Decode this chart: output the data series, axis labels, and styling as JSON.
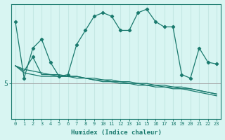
{
  "xlabel": "Humidex (Indice chaleur)",
  "background_color": "#d8f5f2",
  "line_color": "#1a7a6e",
  "grid_color": "#c5e8e4",
  "ytick_label": "5",
  "ytick_val": 5,
  "y_min": 3.0,
  "y_max": 9.5,
  "x_min": -0.5,
  "x_max": 23.5,
  "xticks": [
    0,
    1,
    2,
    3,
    4,
    5,
    6,
    7,
    8,
    9,
    10,
    11,
    12,
    13,
    14,
    15,
    16,
    17,
    18,
    19,
    20,
    21,
    22,
    23
  ],
  "line1_x": [
    0,
    1,
    2,
    3,
    4,
    5,
    6,
    7,
    8,
    9,
    10,
    11,
    12,
    13,
    14,
    15,
    16,
    17,
    18,
    19,
    20,
    21,
    22,
    23
  ],
  "line1_y": [
    8.5,
    5.3,
    7.0,
    7.5,
    6.2,
    5.4,
    5.5,
    7.2,
    8.0,
    8.8,
    9.0,
    8.8,
    8.0,
    8.0,
    9.0,
    9.2,
    8.5,
    8.2,
    8.2,
    5.5,
    5.3,
    7.0,
    6.2,
    6.1
  ],
  "line2_x": [
    0,
    1,
    2,
    3,
    4,
    5,
    6,
    7,
    8,
    9,
    10,
    11,
    12,
    13,
    14,
    15,
    16,
    17,
    18,
    19,
    20,
    21,
    22,
    23
  ],
  "line2_y": [
    6.0,
    5.8,
    5.7,
    5.6,
    5.5,
    5.5,
    5.4,
    5.4,
    5.3,
    5.3,
    5.2,
    5.2,
    5.1,
    5.1,
    5.0,
    5.0,
    4.9,
    4.9,
    4.8,
    4.8,
    4.7,
    4.6,
    4.5,
    4.4
  ],
  "line3_x": [
    0,
    1,
    2,
    3,
    4,
    5,
    6,
    7,
    8,
    9,
    10,
    11,
    12,
    13,
    14,
    15,
    16,
    17,
    18,
    19,
    20,
    21,
    22,
    23
  ],
  "line3_y": [
    6.0,
    5.7,
    6.5,
    5.5,
    5.5,
    5.4,
    5.4,
    5.4,
    5.3,
    5.2,
    5.2,
    5.1,
    5.1,
    5.0,
    5.0,
    4.9,
    4.9,
    4.8,
    4.8,
    4.7,
    4.7,
    4.6,
    4.5,
    4.4
  ],
  "line4_x": [
    0,
    1,
    2,
    3,
    4,
    5,
    6,
    7,
    8,
    9,
    10,
    11,
    12,
    13,
    14,
    15,
    16,
    17,
    18,
    19,
    20,
    21,
    22,
    23
  ],
  "line4_y": [
    6.0,
    5.6,
    5.5,
    5.4,
    5.4,
    5.4,
    5.4,
    5.3,
    5.3,
    5.2,
    5.1,
    5.1,
    5.0,
    5.0,
    4.9,
    4.9,
    4.8,
    4.8,
    4.7,
    4.7,
    4.6,
    4.5,
    4.4,
    4.3
  ],
  "markers_x": [
    0,
    1,
    2,
    3,
    4,
    5,
    6,
    7,
    8,
    9,
    10,
    11,
    12,
    13,
    14,
    15,
    16,
    17,
    18,
    19,
    20,
    21,
    22,
    23
  ],
  "markers_y1": [
    8.5,
    5.3,
    7.0,
    7.5,
    6.2,
    5.4,
    5.5,
    7.2,
    8.0,
    8.8,
    9.0,
    8.8,
    8.0,
    8.0,
    9.0,
    9.2,
    8.5,
    8.2,
    8.2,
    5.5,
    5.3,
    7.0,
    6.2,
    6.1
  ],
  "markers_y3": [
    null,
    null,
    6.5,
    null,
    null,
    null,
    null,
    null,
    null,
    null,
    null,
    null,
    null,
    null,
    null,
    null,
    null,
    null,
    null,
    null,
    null,
    null,
    null,
    null
  ]
}
